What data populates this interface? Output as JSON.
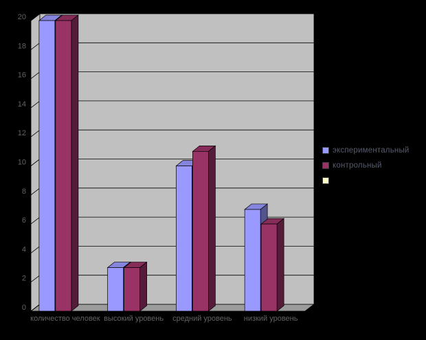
{
  "chart_data": {
    "type": "bar",
    "variant": "3d-clustered-column",
    "title": "",
    "xlabel": "",
    "ylabel": "",
    "categories": [
      "количество человек",
      "высокий уровень",
      "средний уровень",
      "низкий уровень"
    ],
    "series": [
      {
        "name": "экспериментальный",
        "color": "#9999FF",
        "values": [
          20,
          3,
          10,
          7
        ]
      },
      {
        "name": "контрольный",
        "color": "#993366",
        "values": [
          20,
          3,
          11,
          6
        ]
      },
      {
        "name": "",
        "color": "#FFFFCC",
        "values": []
      }
    ],
    "ylim": [
      0,
      20
    ],
    "ytick_step": 2,
    "yticks": [
      0,
      2,
      4,
      6,
      8,
      10,
      12,
      14,
      16,
      18,
      20
    ],
    "grid": true,
    "legend_position": "right",
    "colors": {
      "background": "#000000",
      "plot_wall": "#C0C0C0",
      "plot_floor": "#9C9C9C",
      "gridline": "#000000",
      "axis_text": "#636363",
      "legend_text": "#565B6D"
    }
  }
}
